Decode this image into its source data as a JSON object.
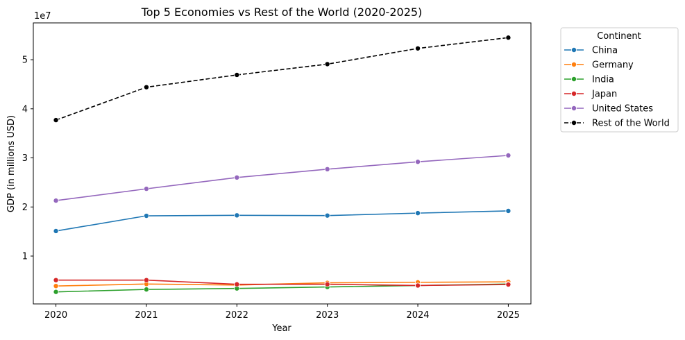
{
  "chart_data": {
    "type": "line",
    "title": "Top 5 Economies vs Rest of the World (2020-2025)",
    "xlabel": "Year",
    "ylabel": "GDP (in millions USD)",
    "y_offset_text": "1e7",
    "x": [
      2020,
      2021,
      2022,
      2023,
      2024,
      2025
    ],
    "xlim": [
      2019.75,
      2025.25
    ],
    "ylim": [
      250000,
      57500000
    ],
    "y_ticks": [
      10000000,
      20000000,
      30000000,
      40000000,
      50000000
    ],
    "y_tick_labels": [
      "1",
      "2",
      "3",
      "4",
      "5"
    ],
    "grid": false,
    "legend": {
      "title": "Continent",
      "placement": "outside-upper-right"
    },
    "series": [
      {
        "name": "China",
        "color": "#1f77b4",
        "dashed": false,
        "values": [
          15100000,
          18200000,
          18300000,
          18250000,
          18750000,
          19200000
        ]
      },
      {
        "name": "Germany",
        "color": "#ff7f0e",
        "dashed": false,
        "values": [
          3900000,
          4300000,
          4100000,
          4550000,
          4650000,
          4750000
        ]
      },
      {
        "name": "India",
        "color": "#2ca02c",
        "dashed": false,
        "values": [
          2700000,
          3200000,
          3400000,
          3700000,
          4000000,
          4300000
        ]
      },
      {
        "name": "Japan",
        "color": "#d62728",
        "dashed": false,
        "values": [
          5100000,
          5100000,
          4250000,
          4250000,
          4000000,
          4200000
        ]
      },
      {
        "name": "United States",
        "color": "#9467bd",
        "dashed": false,
        "values": [
          21300000,
          23700000,
          26000000,
          27700000,
          29200000,
          30500000
        ]
      },
      {
        "name": "Rest of the World",
        "color": "#000000",
        "dashed": true,
        "values": [
          37700000,
          44400000,
          46900000,
          49100000,
          52300000,
          54500000
        ]
      }
    ]
  }
}
